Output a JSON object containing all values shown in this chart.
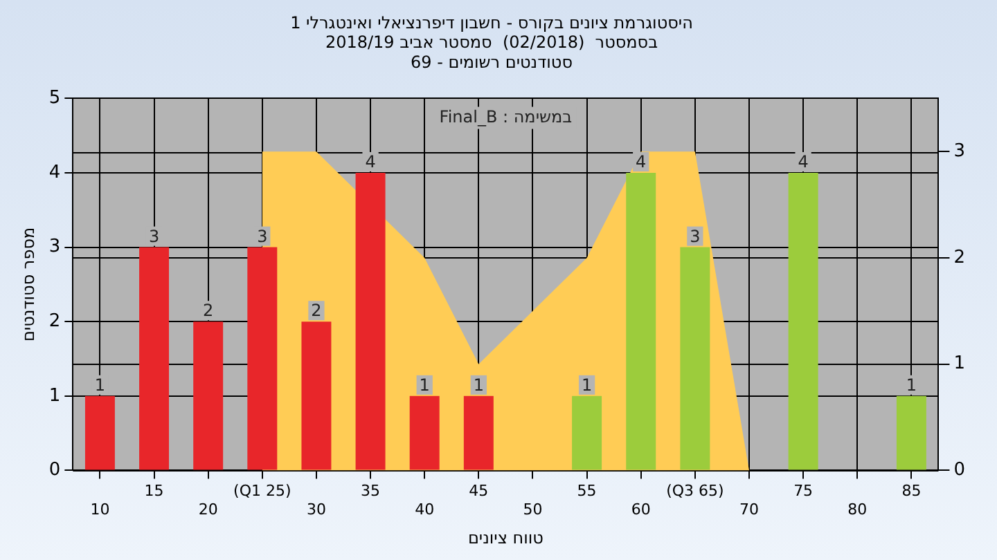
{
  "chart_data": {
    "type": "bar",
    "title": [
      "היסטוגרמת ציונים בקורס - חשבון דיפרנציאלי ואינטגרלי 1",
      "בסמסטר  (02/2018)  סמסטר אביב 2018/19",
      "סטודנטים רשומים - 69"
    ],
    "xlabel": "טווח ציונים",
    "ylabel": "מספר סטודנטים",
    "annotations": [
      "Final_B : במשימה"
    ],
    "categories": [
      "10",
      "15",
      "20",
      "(Q1 25)",
      "30",
      "35",
      "40",
      "45",
      "50",
      "55",
      "60",
      "(Q3 65)",
      "70",
      "75",
      "80",
      "85"
    ],
    "series": [
      {
        "colors": [
          "#e8262a",
          "#e8262a",
          "#e8262a",
          "#e8262a",
          "#e8262a",
          "#e8262a",
          "#e8262a",
          "#e8262a",
          "#9ccc3c",
          "#9ccc3c",
          "#9ccc3c",
          "#9ccc3c",
          "#9ccc3c",
          "#9ccc3c",
          "#9ccc3c",
          "#9ccc3c"
        ],
        "values": [
          1,
          3,
          2,
          3,
          2,
          4,
          1,
          1,
          0,
          1,
          4,
          3,
          0,
          4,
          0,
          1
        ],
        "value_labels": [
          "1",
          "3",
          "2",
          "3",
          "2",
          "4",
          "1",
          "1",
          null,
          "1",
          "4",
          "3",
          null,
          "4",
          null,
          "1"
        ]
      },
      {
        "type": "area",
        "axis": "y2",
        "color": "#ffcc55",
        "values": [
          null,
          null,
          null,
          3,
          3,
          null,
          2,
          1,
          1.5,
          2,
          3,
          3,
          0,
          null,
          null,
          null
        ]
      }
    ],
    "ylim": [
      0,
      5
    ],
    "yticks": [
      0,
      1,
      2,
      3,
      4,
      5
    ],
    "y2lim": [
      0,
      3.5
    ],
    "y2ticks": [
      0,
      1,
      2,
      3
    ],
    "grid": true,
    "legend": false
  }
}
